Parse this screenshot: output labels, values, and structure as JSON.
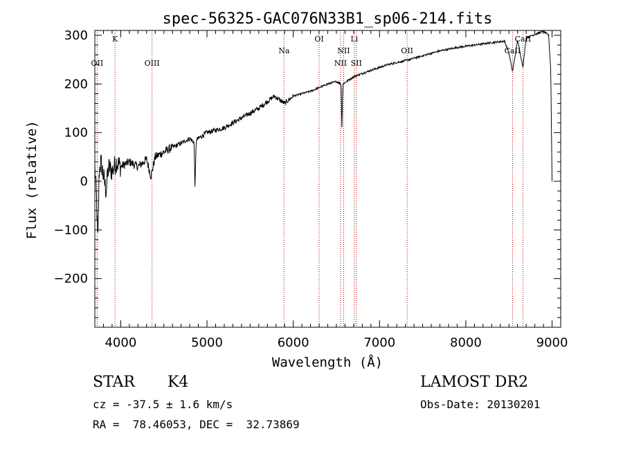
{
  "chart_data": {
    "type": "line",
    "title": "spec-56325-GAC076N33B1_sp06-214.fits",
    "xlabel": "Wavelength (Å)",
    "ylabel": "Flux (relative)",
    "xlim": [
      3700,
      9100
    ],
    "ylim": [
      -300,
      310
    ],
    "xticks": [
      4000,
      5000,
      6000,
      7000,
      8000,
      9000
    ],
    "yticks": [
      -200,
      -100,
      0,
      100,
      200,
      300
    ],
    "spectrum_keypoints": [
      [
        3700,
        30
      ],
      [
        3720,
        -40
      ],
      [
        3735,
        -130
      ],
      [
        3750,
        20
      ],
      [
        3770,
        40
      ],
      [
        3800,
        10
      ],
      [
        3830,
        -20
      ],
      [
        3860,
        30
      ],
      [
        3900,
        20
      ],
      [
        3950,
        40
      ],
      [
        4000,
        30
      ],
      [
        4100,
        40
      ],
      [
        4200,
        30
      ],
      [
        4300,
        45
      ],
      [
        4350,
        10
      ],
      [
        4400,
        50
      ],
      [
        4500,
        60
      ],
      [
        4600,
        70
      ],
      [
        4700,
        78
      ],
      [
        4800,
        88
      ],
      [
        4850,
        80
      ],
      [
        4861,
        -15
      ],
      [
        4875,
        85
      ],
      [
        5000,
        100
      ],
      [
        5200,
        110
      ],
      [
        5400,
        130
      ],
      [
        5600,
        150
      ],
      [
        5780,
        175
      ],
      [
        5900,
        160
      ],
      [
        6000,
        175
      ],
      [
        6200,
        185
      ],
      [
        6400,
        200
      ],
      [
        6500,
        205
      ],
      [
        6555,
        200
      ],
      [
        6563,
        105
      ],
      [
        6575,
        200
      ],
      [
        6700,
        215
      ],
      [
        6900,
        228
      ],
      [
        7100,
        240
      ],
      [
        7300,
        248
      ],
      [
        7500,
        258
      ],
      [
        7700,
        268
      ],
      [
        7900,
        275
      ],
      [
        8100,
        280
      ],
      [
        8300,
        285
      ],
      [
        8450,
        288
      ],
      [
        8498,
        265
      ],
      [
        8542,
        225
      ],
      [
        8600,
        290
      ],
      [
        8662,
        235
      ],
      [
        8700,
        295
      ],
      [
        8800,
        302
      ],
      [
        8900,
        308
      ],
      [
        8960,
        300
      ],
      [
        8985,
        230
      ],
      [
        9000,
        0
      ]
    ],
    "spectral_lines": [
      {
        "name": "OII",
        "wavelength": 3727,
        "row": 2
      },
      {
        "name": "K",
        "wavelength": 3934,
        "row": 0
      },
      {
        "name": "OIII",
        "wavelength": 4363,
        "row": 2
      },
      {
        "name": "Na",
        "wavelength": 5893,
        "row": 1
      },
      {
        "name": "OI",
        "wavelength": 6300,
        "row": 0
      },
      {
        "name": "NII",
        "wavelength": 6548,
        "row": 2
      },
      {
        "name": "NII",
        "wavelength": 6584,
        "row": 1
      },
      {
        "name": "Li",
        "wavelength": 6708,
        "row": 0
      },
      {
        "name": "SII",
        "wavelength": 6731,
        "row": 2
      },
      {
        "name": "OII",
        "wavelength": 7320,
        "row": 1
      },
      {
        "name": "CaII",
        "wavelength": 8542,
        "row": 1
      },
      {
        "name": "CaII",
        "wavelength": 8662,
        "row": 0
      }
    ],
    "grid": false,
    "line_color": "#000000",
    "marker_color": "#aa0000"
  },
  "info": {
    "class": "STAR",
    "subclass": "K4",
    "survey": "LAMOST DR2",
    "cz": "cz = -37.5 ± 1.6 km/s",
    "obs_date": "Obs-Date: 20130201",
    "radec": "RA =  78.46053, DEC =  32.73869"
  }
}
